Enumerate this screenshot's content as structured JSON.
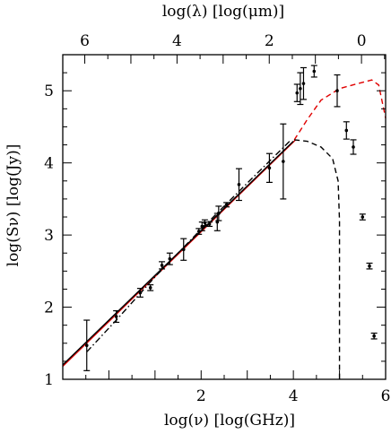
{
  "chart_data": {
    "type": "scatter",
    "xlabel": "log(ν)  [log(GHz)]",
    "ylabel": "log(Sν)  [log(Jy)]",
    "top_xlabel": "log(λ)  [log(μm)]",
    "xlim": [
      -1,
      6
    ],
    "ylim": [
      1,
      5.5
    ],
    "top_xlim": [
      6.477,
      -0.523
    ],
    "x_ticks": [
      "2",
      "4",
      "6"
    ],
    "x_tick_values": [
      2,
      4,
      6
    ],
    "y_ticks": [
      "1",
      "2",
      "3",
      "4",
      "5"
    ],
    "y_tick_values": [
      1,
      2,
      3,
      4,
      5
    ],
    "top_ticks": [
      "6",
      "4",
      "2",
      "0"
    ],
    "top_tick_values": [
      6,
      4,
      2,
      0
    ],
    "grid": false,
    "legend": "none",
    "colors": {
      "red": "#e00000",
      "black": "#000000"
    },
    "series": [
      {
        "style": "errorbar-points",
        "color": "#000000",
        "points": [
          {
            "x": -0.48,
            "y": 1.47,
            "err": 0.35
          },
          {
            "x": 0.16,
            "y": 1.87,
            "err": 0.08
          },
          {
            "x": 0.68,
            "y": 2.2,
            "err": 0.06
          },
          {
            "x": 0.9,
            "y": 2.27,
            "err": 0.04
          },
          {
            "x": 1.15,
            "y": 2.58,
            "err": 0.05
          },
          {
            "x": 1.32,
            "y": 2.67,
            "err": 0.08
          },
          {
            "x": 1.62,
            "y": 2.8,
            "err": 0.15
          },
          {
            "x": 1.95,
            "y": 3.05,
            "err": 0.04
          },
          {
            "x": 2.02,
            "y": 3.12,
            "err": 0.06
          },
          {
            "x": 2.08,
            "y": 3.17,
            "err": 0.04
          },
          {
            "x": 2.18,
            "y": 3.15,
            "err": 0.03
          },
          {
            "x": 2.35,
            "y": 3.18,
            "err": 0.12
          },
          {
            "x": 2.38,
            "y": 3.3,
            "err": 0.1
          },
          {
            "x": 2.55,
            "y": 3.42,
            "err": 0.03
          },
          {
            "x": 2.82,
            "y": 3.7,
            "err": 0.22
          },
          {
            "x": 3.48,
            "y": 3.93,
            "err": 0.2
          },
          {
            "x": 3.78,
            "y": 4.02,
            "err": 0.52
          },
          {
            "x": 4.08,
            "y": 4.97,
            "err": 0.12
          },
          {
            "x": 4.15,
            "y": 5.03,
            "err": 0.22
          },
          {
            "x": 4.22,
            "y": 5.1,
            "err": 0.22
          },
          {
            "x": 4.45,
            "y": 5.27,
            "err": 0.08
          },
          {
            "x": 4.95,
            "y": 5.0,
            "err": 0.22
          },
          {
            "x": 5.15,
            "y": 4.45,
            "err": 0.12
          },
          {
            "x": 5.3,
            "y": 4.22,
            "err": 0.1
          },
          {
            "x": 5.5,
            "y": 3.25,
            "err": 0.04
          },
          {
            "x": 5.65,
            "y": 2.57,
            "err": 0.04
          },
          {
            "x": 5.75,
            "y": 1.6,
            "err": 0.04
          }
        ]
      },
      {
        "style": "solid",
        "color": "#e00000",
        "points": [
          [
            -1,
            1.18
          ],
          [
            4.05,
            4.32
          ]
        ]
      },
      {
        "style": "solid",
        "color": "#000000",
        "points": [
          [
            -1,
            1.2
          ],
          [
            4.0,
            4.3
          ]
        ]
      },
      {
        "style": "dashdot",
        "color": "#000000",
        "points": [
          [
            -0.48,
            1.38
          ],
          [
            0.16,
            1.82
          ],
          [
            1.0,
            2.42
          ],
          [
            2.0,
            3.08
          ],
          [
            3.0,
            3.72
          ],
          [
            3.95,
            4.32
          ]
        ]
      },
      {
        "style": "dashed",
        "color": "#e00000",
        "points": [
          [
            4.02,
            4.32
          ],
          [
            4.3,
            4.6
          ],
          [
            4.6,
            4.87
          ],
          [
            5.0,
            5.03
          ],
          [
            5.4,
            5.1
          ],
          [
            5.7,
            5.15
          ],
          [
            5.85,
            5.08
          ],
          [
            6.0,
            4.62
          ]
        ]
      },
      {
        "style": "dashed",
        "color": "#000000",
        "points": [
          [
            4.02,
            4.32
          ],
          [
            4.3,
            4.3
          ],
          [
            4.6,
            4.22
          ],
          [
            4.85,
            4.06
          ],
          [
            4.97,
            3.75
          ],
          [
            5.0,
            3.2
          ],
          [
            5.0,
            1.0
          ]
        ]
      }
    ]
  }
}
